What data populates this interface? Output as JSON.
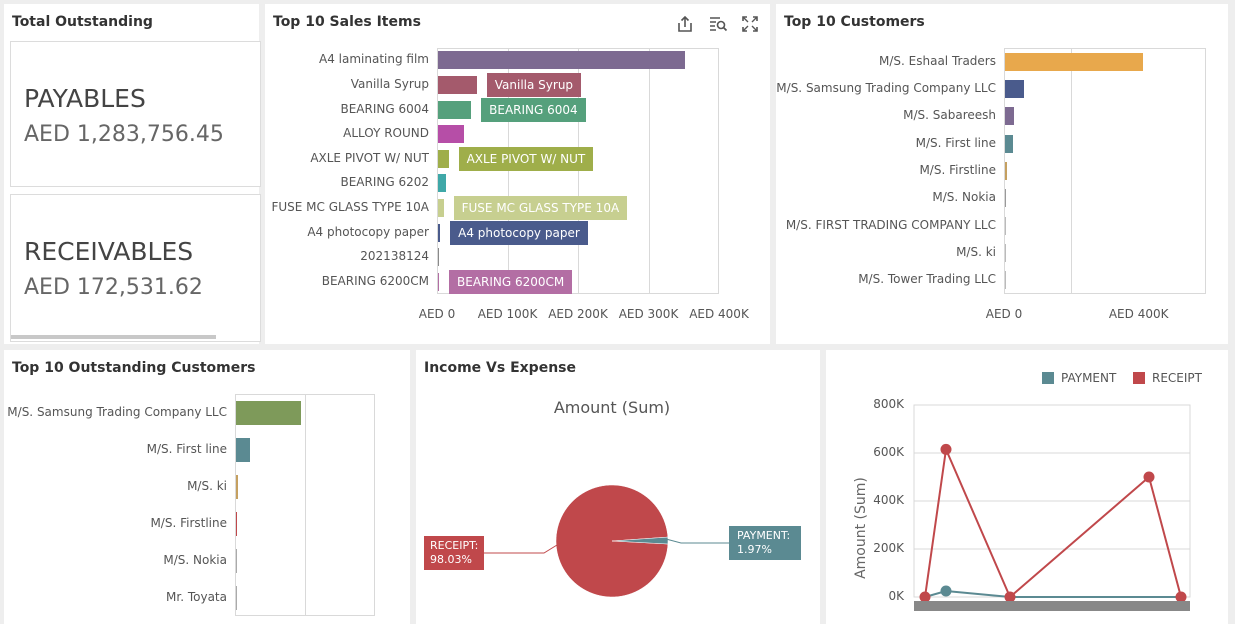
{
  "total_outstanding": {
    "title": "Total Outstanding",
    "payables_label": "PAYABLES",
    "payables_value": "AED 1,283,756.45",
    "receivables_label": "RECEIVABLES",
    "receivables_value": "AED 172,531.62"
  },
  "top_sales": {
    "title": "Top 10 Sales Items",
    "icons": [
      "export-icon",
      "inspect-icon",
      "maximize-icon"
    ],
    "ticks": [
      "AED 0",
      "AED 100K",
      "AED 200K",
      "AED 300K",
      "AED 400K"
    ]
  },
  "top_customers": {
    "title": "Top 10 Customers",
    "ticks": [
      "AED 0",
      "AED 400K"
    ]
  },
  "top_outstanding": {
    "title": "Top 10 Outstanding Customers"
  },
  "income_expense": {
    "title": "Income Vs Expense",
    "pie_title": "Amount (Sum)",
    "receipt_label": "RECEIPT:",
    "receipt_pct": "98.03%",
    "payment_label": "PAYMENT:",
    "payment_pct": "1.97%"
  },
  "line_chart": {
    "legend_payment": "PAYMENT",
    "legend_receipt": "RECEIPT",
    "ylabel": "Amount (Sum)",
    "yticks": [
      "800K",
      "600K",
      "400K",
      "200K",
      "0K"
    ]
  },
  "colors": {
    "receipt": "#c0484b",
    "payment": "#5b8a92"
  },
  "chart_data": [
    {
      "type": "bar",
      "title": "Top 10 Sales Items",
      "orientation": "horizontal",
      "categories": [
        "A4 laminating film",
        "Vanilla Syrup",
        "BEARING 6004",
        "ALLOY ROUND",
        "AXLE PIVOT W/ NUT",
        "BEARING 6202",
        "FUSE MC GLASS TYPE 10A",
        "A4 photocopy paper",
        "202138124",
        "BEARING 6200CM"
      ],
      "values": [
        350000,
        55000,
        47000,
        37000,
        15000,
        12000,
        8000,
        3000,
        1000,
        1000
      ],
      "data_labels": [
        "",
        "Vanilla Syrup",
        "BEARING 6004",
        "",
        "AXLE PIVOT W/ NUT",
        "",
        "FUSE MC GLASS TYPE 10A",
        "A4 photocopy paper",
        "",
        "BEARING 6200CM"
      ],
      "colors": [
        "#7d6a91",
        "#a45a6c",
        "#55a07c",
        "#b64ea7",
        "#9fae4a",
        "#3fa8a8",
        "#c7cf90",
        "#4a5b8c",
        "#8a8a8a",
        "#b36ea4"
      ],
      "xlim": [
        0,
        400000
      ],
      "grid": true
    },
    {
      "type": "bar",
      "title": "Top 10 Customers",
      "orientation": "horizontal",
      "categories": [
        "M/S. Eshaal Traders",
        "M/S. Samsung Trading Company LLC",
        "M/S. Sabareesh",
        "M/S. First line",
        "M/S. Firstline",
        "M/S. Nokia",
        "M/S. FIRST TRADING COMPANY LLC",
        "M/S. ki",
        "M/S. Tower Trading LLC"
      ],
      "values": [
        410000,
        55000,
        28000,
        25000,
        6000,
        3000,
        800,
        500,
        300
      ],
      "colors": [
        "#e8a84c",
        "#4a5b8c",
        "#7d6a91",
        "#5b8a92",
        "#c5a060",
        "#9a9a9a",
        "#bbbbbb",
        "#bbbbbb",
        "#bbbbbb"
      ],
      "xlim": [
        0,
        600000
      ],
      "grid": true
    },
    {
      "type": "bar",
      "title": "Top 10 Outstanding Customers",
      "orientation": "horizontal",
      "categories": [
        "M/S. Samsung Trading Company LLC",
        "M/S. First line",
        "M/S. ki",
        "M/S. Firstline",
        "M/S. Nokia",
        "Mr. Toyata"
      ],
      "values": [
        93,
        20,
        3,
        1,
        0.3,
        0.2
      ],
      "colors": [
        "#7e9a5a",
        "#5b8a92",
        "#c5a060",
        "#c0484b",
        "#aaaaaa",
        "#aaaaaa"
      ],
      "xlim": [
        0,
        200
      ],
      "grid": true
    },
    {
      "type": "pie",
      "title": "Amount (Sum)",
      "categories": [
        "RECEIPT",
        "PAYMENT"
      ],
      "values": [
        98.03,
        1.97
      ],
      "colors": [
        "#c0484b",
        "#5b8a92"
      ]
    },
    {
      "type": "line",
      "ylabel": "Amount (Sum)",
      "ylim": [
        0,
        800000
      ],
      "legend": "top-right",
      "series": [
        {
          "name": "PAYMENT",
          "values": [
            0,
            25000,
            0,
            0,
            0
          ],
          "color": "#5b8a92"
        },
        {
          "name": "RECEIPT",
          "values": [
            0,
            615000,
            0,
            500000,
            0
          ],
          "color": "#c0484b"
        }
      ],
      "x": [
        0,
        1,
        2,
        3,
        4
      ],
      "grid": true
    }
  ]
}
